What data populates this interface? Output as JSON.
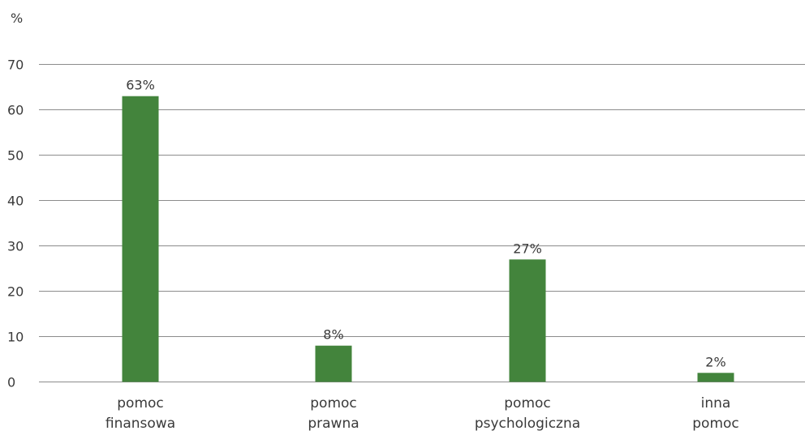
{
  "chart_data": {
    "type": "bar",
    "unit_label": "%",
    "categories": [
      [
        "pomoc",
        "finansowa"
      ],
      [
        "pomoc",
        "prawna"
      ],
      [
        "pomoc",
        "psychologiczna"
      ],
      [
        "inna",
        "pomoc"
      ]
    ],
    "values": [
      63,
      8,
      27,
      2
    ],
    "data_labels": [
      "63%",
      "8%",
      "27%",
      "2%"
    ],
    "ylim": [
      0,
      70
    ],
    "yticks": [
      0,
      10,
      20,
      30,
      40,
      50,
      60,
      70
    ],
    "grid": true,
    "legend": "none",
    "colors": {
      "bar": "#43843c",
      "grid": "#8c8c8c",
      "text": "#3a3a3a"
    }
  }
}
